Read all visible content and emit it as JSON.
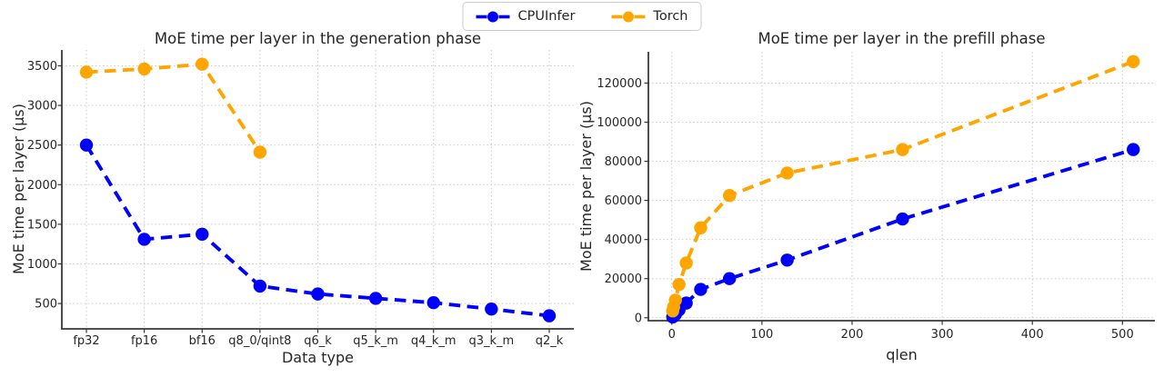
{
  "legend": {
    "position": "top-center",
    "entries": [
      {
        "label": "CPUInfer",
        "color": "#0000ff"
      },
      {
        "label": "Torch",
        "color": "#ffa500"
      }
    ]
  },
  "colors": {
    "cpuinfer": "#0000ff",
    "torch": "#ffa500",
    "grid": "#cbcbcb",
    "spine": "#3a3a3a",
    "text": "#262626"
  },
  "chart_data": [
    {
      "type": "line",
      "title": "MoE time per layer in the generation phase",
      "xlabel": "Data type",
      "ylabel": "MoE time per layer (μs)",
      "x_type": "categorical",
      "categories": [
        "fp32",
        "fp16",
        "bf16",
        "q8_0/qint8",
        "q6_k",
        "q5_k_m",
        "q4_k_m",
        "q3_k_m",
        "q2_k"
      ],
      "yticks": [
        500,
        1000,
        1500,
        2000,
        2500,
        3000,
        3500
      ],
      "ylim": [
        180,
        3700
      ],
      "grid": true,
      "line_style": "dashed",
      "series": [
        {
          "name": "CPUInfer",
          "color": "#0000ff",
          "values": [
            2500,
            1310,
            1375,
            720,
            620,
            565,
            510,
            430,
            345
          ]
        },
        {
          "name": "Torch",
          "color": "#ffa500",
          "values": [
            3420,
            3460,
            3520,
            2410,
            null,
            null,
            null,
            null,
            null
          ]
        }
      ]
    },
    {
      "type": "line",
      "title": "MoE time per layer in the prefill phase",
      "xlabel": "qlen",
      "ylabel": "MoE time per layer (μs)",
      "x_type": "linear",
      "x": [
        1,
        2,
        4,
        8,
        16,
        32,
        64,
        128,
        256,
        512
      ],
      "xticks": [
        0,
        100,
        200,
        300,
        400,
        500
      ],
      "xlim": [
        -26,
        536
      ],
      "yticks": [
        0,
        20000,
        40000,
        60000,
        80000,
        100000,
        120000
      ],
      "ylim": [
        -1500,
        136000
      ],
      "grid": true,
      "line_style": "dashed",
      "series": [
        {
          "name": "CPUInfer",
          "color": "#0000ff",
          "values": [
            400,
            800,
            1700,
            4000,
            7500,
            14500,
            20000,
            29500,
            50500,
            86000
          ]
        },
        {
          "name": "Torch",
          "color": "#ffa500",
          "values": [
            3500,
            5500,
            9000,
            17000,
            28000,
            46000,
            62500,
            74000,
            86000,
            131000
          ]
        }
      ]
    }
  ]
}
